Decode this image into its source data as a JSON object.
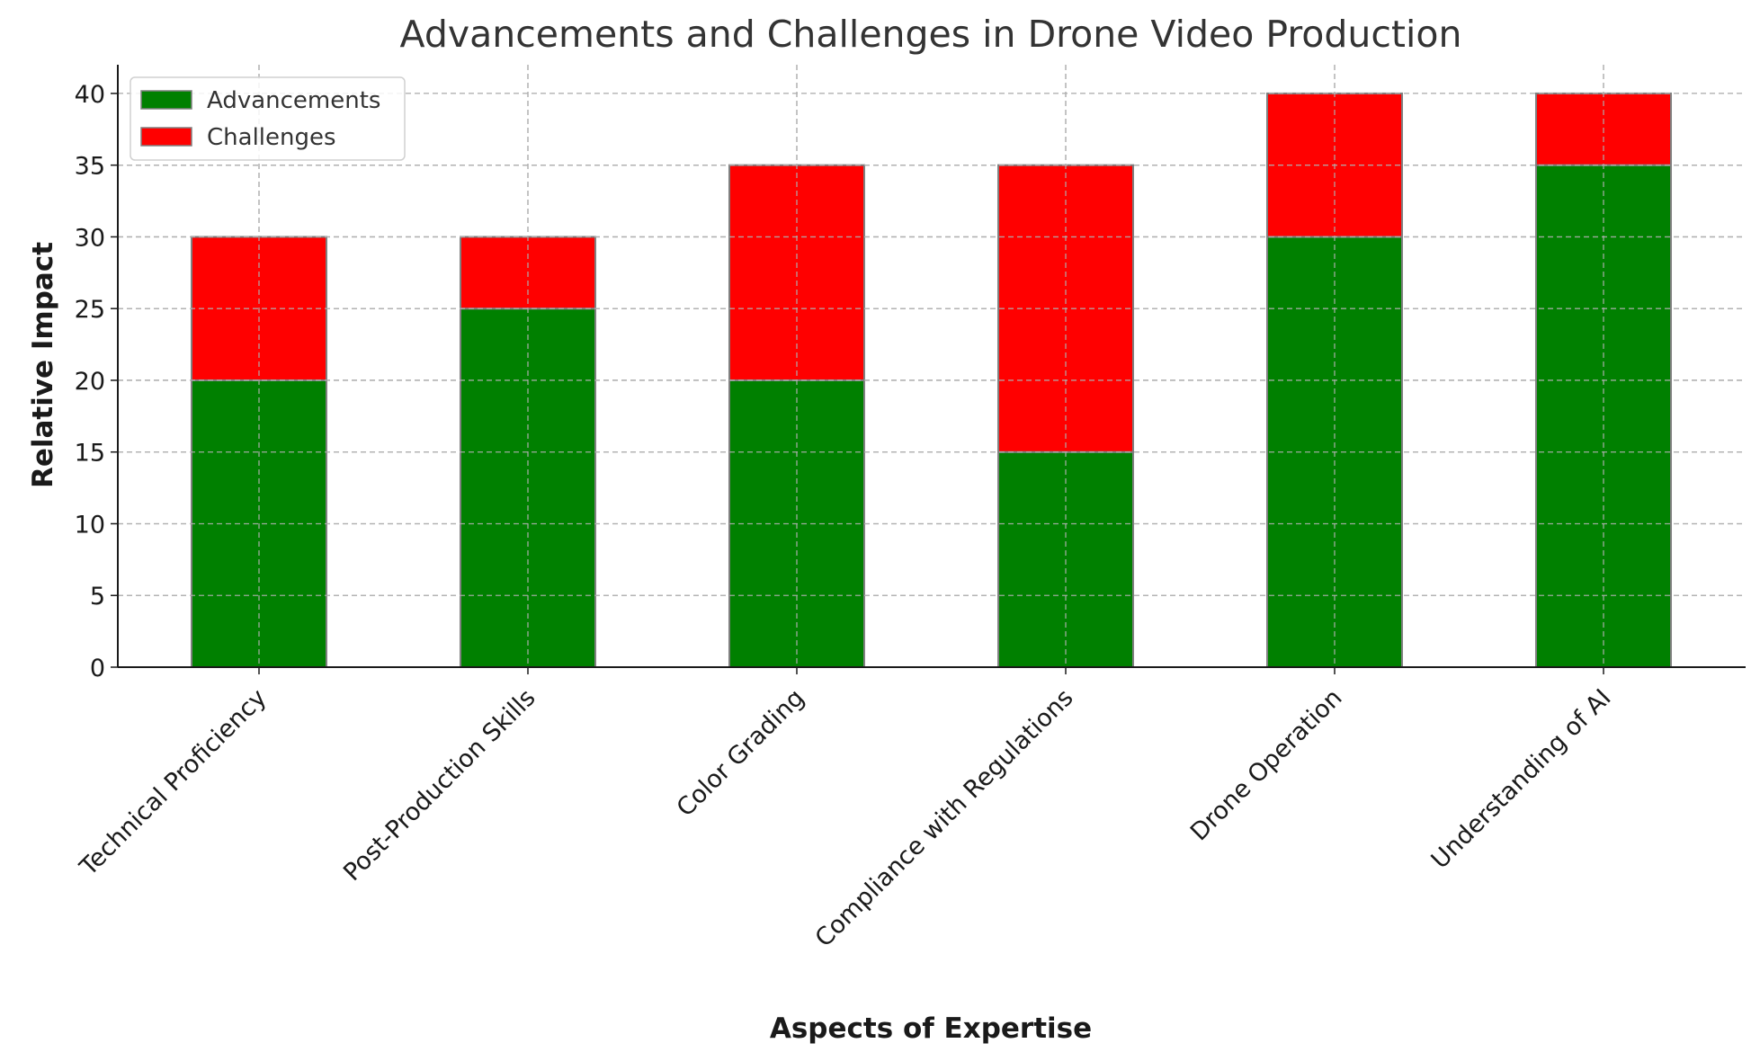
{
  "chart_data": {
    "type": "bar",
    "stacked": true,
    "title": "Advancements and Challenges in Drone Video Production",
    "xlabel": "Aspects of Expertise",
    "ylabel": "Relative Impact",
    "categories": [
      "Technical Proficiency",
      "Post-Production Skills",
      "Color Grading",
      "Compliance with Regulations",
      "Drone Operation",
      "Understanding of AI"
    ],
    "series": [
      {
        "name": "Advancements",
        "color": "#008000",
        "values": [
          20,
          25,
          20,
          15,
          30,
          35
        ]
      },
      {
        "name": "Challenges",
        "color": "#ff0000",
        "values": [
          10,
          5,
          15,
          20,
          10,
          5
        ]
      }
    ],
    "ylim": [
      0,
      42
    ],
    "yticks": [
      "0",
      "5",
      "10",
      "15",
      "20",
      "25",
      "30",
      "35",
      "40"
    ],
    "grid": true,
    "legend_position": "top-left",
    "bar_edge_color": "#808080"
  }
}
